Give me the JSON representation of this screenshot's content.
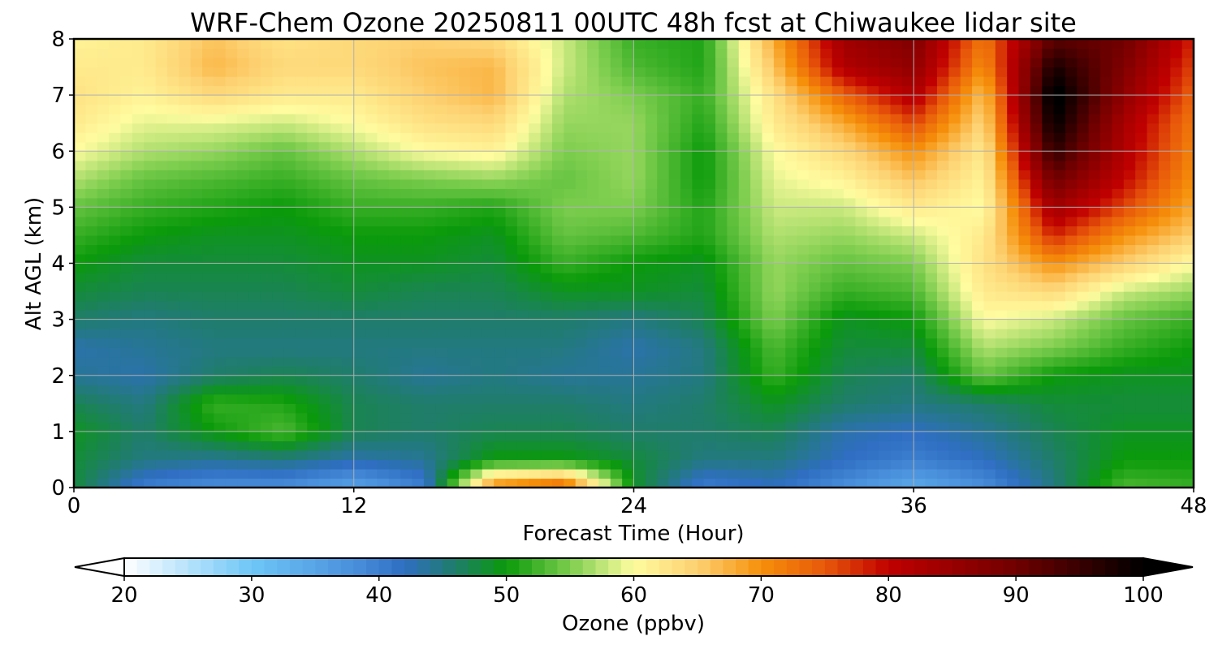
{
  "chart_data": {
    "type": "heatmap",
    "title": "WRF-Chem Ozone  20250811 00UTC 48h fcst at Chiwaukee lidar site",
    "xlabel": "Forecast Time (Hour)",
    "ylabel": "Alt AGL (km)",
    "xlim": [
      0,
      48
    ],
    "ylim": [
      0,
      8
    ],
    "xticks": [
      "0",
      "12",
      "24",
      "36",
      "48"
    ],
    "yticks": [
      "0",
      "1",
      "2",
      "3",
      "4",
      "5",
      "6",
      "7",
      "8"
    ],
    "grid": true,
    "x": [
      0,
      3,
      6,
      9,
      12,
      15,
      18,
      21,
      24,
      27,
      30,
      33,
      36,
      39,
      42,
      45,
      48
    ],
    "y": [
      0,
      0.5,
      1,
      1.5,
      2,
      2.5,
      3,
      3.5,
      4,
      4.5,
      5,
      5.5,
      6,
      6.5,
      7,
      7.5,
      8
    ],
    "z": [
      [
        48,
        40,
        38,
        38,
        35,
        40,
        72,
        76,
        49,
        40,
        42,
        38,
        34,
        38,
        45,
        53,
        52
      ],
      [
        48,
        45,
        44,
        45,
        43,
        44,
        50,
        50,
        48,
        45,
        45,
        42,
        40,
        42,
        46,
        50,
        50
      ],
      [
        49,
        46,
        50,
        53,
        47,
        46,
        47,
        47,
        46,
        46,
        47,
        43,
        42,
        44,
        47,
        49,
        49
      ],
      [
        47,
        45,
        52,
        51,
        47,
        46,
        46,
        46,
        45,
        46,
        49,
        46,
        45,
        46,
        48,
        48,
        48
      ],
      [
        44,
        43,
        46,
        47,
        46,
        44,
        45,
        44,
        44,
        45,
        52,
        47,
        46,
        54,
        50,
        49,
        49
      ],
      [
        43,
        44,
        45,
        45,
        45,
        45,
        45,
        45,
        43,
        45,
        53,
        48,
        48,
        57,
        55,
        52,
        50
      ],
      [
        46,
        45,
        46,
        46,
        46,
        46,
        46,
        46,
        45,
        47,
        55,
        49,
        50,
        60,
        58,
        54,
        52
      ],
      [
        48,
        47,
        47,
        47,
        48,
        47,
        47,
        49,
        49,
        48,
        56,
        52,
        53,
        62,
        64,
        58,
        56
      ],
      [
        50,
        48,
        48,
        48,
        49,
        49,
        48,
        52,
        50,
        49,
        56,
        54,
        55,
        63,
        70,
        65,
        60
      ],
      [
        52,
        50,
        49,
        49,
        50,
        50,
        49,
        54,
        53,
        51,
        57,
        56,
        58,
        62,
        78,
        70,
        65
      ],
      [
        54,
        52,
        51,
        50,
        52,
        52,
        51,
        55,
        55,
        51,
        58,
        58,
        62,
        60,
        84,
        76,
        68
      ],
      [
        57,
        54,
        53,
        52,
        54,
        55,
        56,
        54,
        56,
        50,
        59,
        61,
        66,
        61,
        90,
        80,
        70
      ],
      [
        60,
        57,
        56,
        54,
        57,
        60,
        61,
        55,
        56,
        50,
        60,
        64,
        70,
        62,
        96,
        82,
        71
      ],
      [
        62,
        59,
        59,
        58,
        60,
        63,
        64,
        56,
        56,
        51,
        62,
        68,
        76,
        64,
        100,
        83,
        72
      ],
      [
        63,
        61,
        64,
        62,
        62,
        65,
        67,
        57,
        55,
        52,
        63,
        74,
        82,
        66,
        102,
        86,
        74
      ],
      [
        62,
        62,
        67,
        64,
        64,
        66,
        67,
        58,
        53,
        51,
        66,
        82,
        86,
        70,
        98,
        88,
        76
      ],
      [
        61,
        62,
        66,
        63,
        64,
        65,
        64,
        58,
        52,
        51,
        68,
        84,
        88,
        72,
        92,
        90,
        78
      ]
    ],
    "colorbar": {
      "label": "Ozone  (ppbv)",
      "vmin": 20,
      "vmax": 100,
      "ticks": [
        "20",
        "30",
        "40",
        "50",
        "60",
        "70",
        "80",
        "90",
        "100"
      ],
      "extend": "both",
      "stops": [
        {
          "v": 20,
          "c": "#ffffff"
        },
        {
          "v": 30,
          "c": "#6ec6f7"
        },
        {
          "v": 38,
          "c": "#4a90dc"
        },
        {
          "v": 42,
          "c": "#2f6ec2"
        },
        {
          "v": 46,
          "c": "#1f7d6a"
        },
        {
          "v": 50,
          "c": "#0a9a0a"
        },
        {
          "v": 55,
          "c": "#7ccd4e"
        },
        {
          "v": 60,
          "c": "#fffca0"
        },
        {
          "v": 65,
          "c": "#fdd070"
        },
        {
          "v": 70,
          "c": "#f6900a"
        },
        {
          "v": 75,
          "c": "#e8580a"
        },
        {
          "v": 80,
          "c": "#c00000"
        },
        {
          "v": 90,
          "c": "#700000"
        },
        {
          "v": 100,
          "c": "#000000"
        }
      ]
    }
  }
}
